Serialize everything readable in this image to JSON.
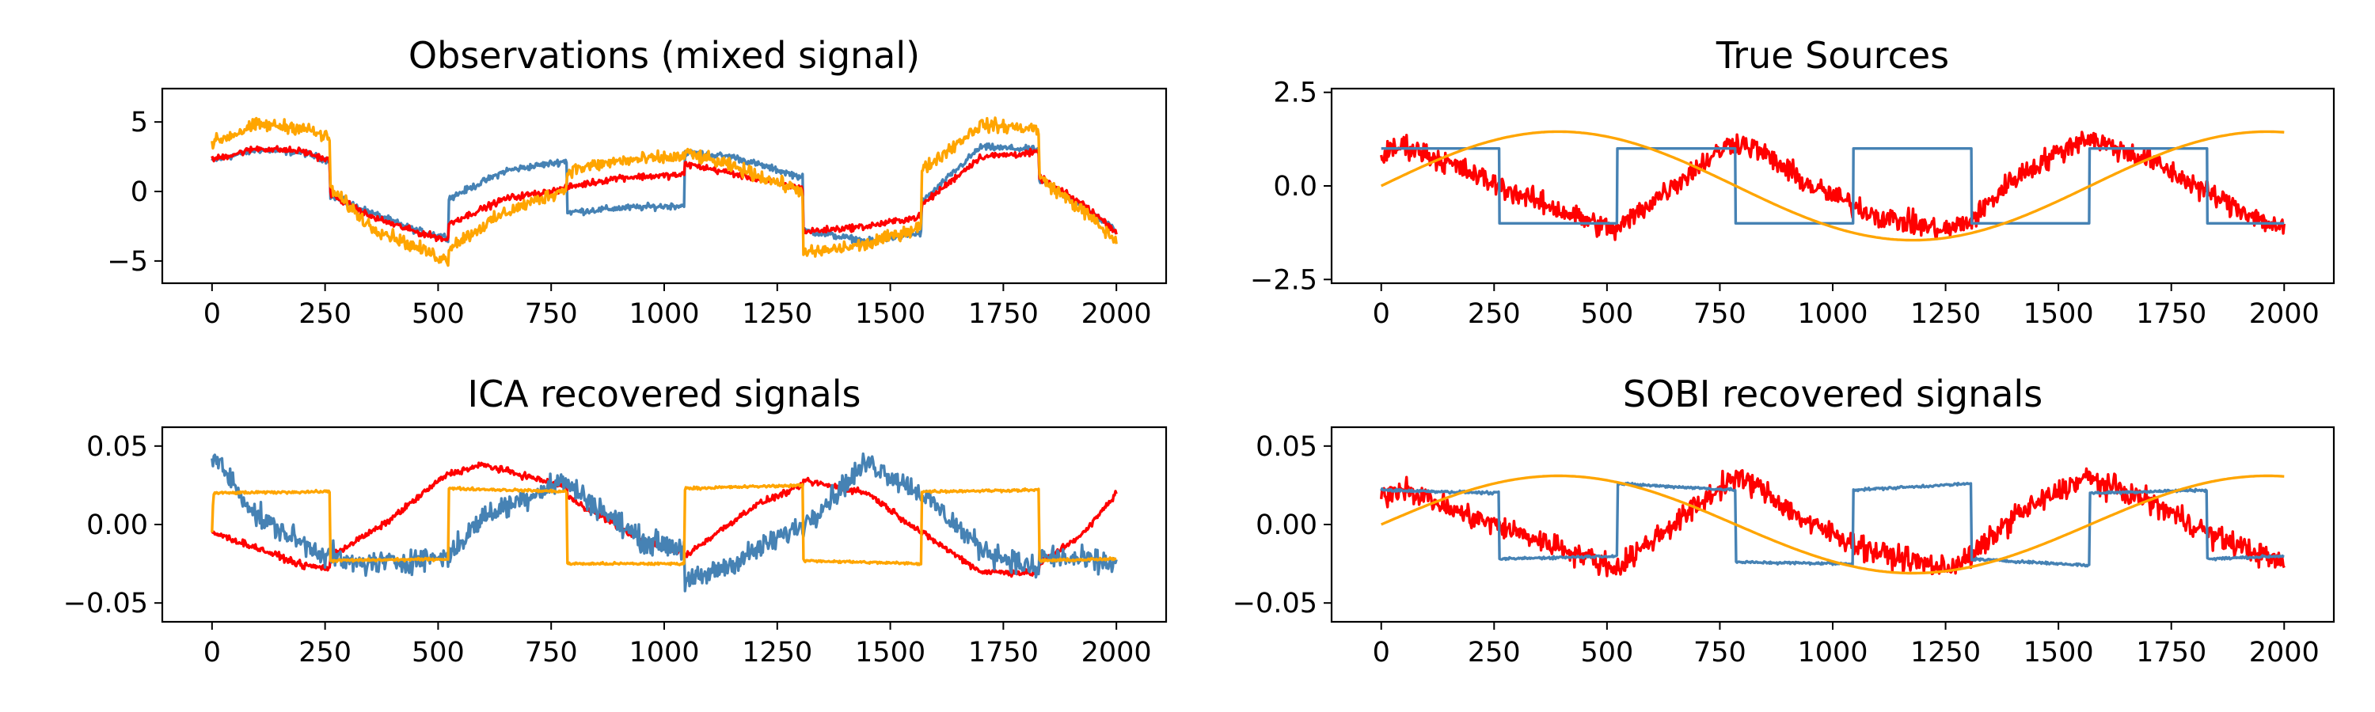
{
  "colors": {
    "red": "#ff0000",
    "blue": "#4682b4",
    "orange": "#ffa500"
  },
  "chart_data": [
    {
      "type": "line",
      "title": "Observations (mixed signal)",
      "xlim": [
        -110,
        2110
      ],
      "ylim": [
        -6.6,
        7.4
      ],
      "xticks": [
        0,
        250,
        500,
        750,
        1000,
        1250,
        1500,
        1750,
        2000
      ],
      "xtick_labels": [
        "0",
        "250",
        "500",
        "750",
        "1000",
        "1250",
        "1500",
        "1750",
        "2000"
      ],
      "yticks": [
        -5,
        0,
        5
      ],
      "ytick_labels": [
        "−5",
        "0",
        "5"
      ],
      "series": [
        {
          "color": "#4682b4",
          "noise": 0.35,
          "points": [
            [
              0,
              2.2
            ],
            [
              100,
              3.0
            ],
            [
              200,
              2.8
            ],
            [
              261,
              2.2
            ],
            [
              262,
              -0.3
            ],
            [
              350,
              -1.5
            ],
            [
              450,
              -2.8
            ],
            [
              523,
              -3.3
            ],
            [
              524,
              -0.5
            ],
            [
              650,
              1.5
            ],
            [
              784,
              2.2
            ],
            [
              785,
              -1.5
            ],
            [
              900,
              -1.2
            ],
            [
              1045,
              -1.0
            ],
            [
              1046,
              2.8
            ],
            [
              1150,
              2.5
            ],
            [
              1307,
              1.0
            ],
            [
              1308,
              -2.8
            ],
            [
              1450,
              -3.6
            ],
            [
              1568,
              -3.0
            ],
            [
              1569,
              -0.8
            ],
            [
              1700,
              3.2
            ],
            [
              1829,
              3.0
            ],
            [
              1830,
              0.8
            ],
            [
              1930,
              -1.2
            ],
            [
              2000,
              -2.8
            ]
          ]
        },
        {
          "color": "#ff0000",
          "noise": 0.35,
          "points": [
            [
              0,
              2.3
            ],
            [
              100,
              3.1
            ],
            [
              200,
              2.9
            ],
            [
              261,
              2.2
            ],
            [
              262,
              -0.2
            ],
            [
              350,
              -1.8
            ],
            [
              450,
              -2.9
            ],
            [
              523,
              -3.5
            ],
            [
              524,
              -2.3
            ],
            [
              650,
              -0.5
            ],
            [
              784,
              0.2
            ],
            [
              785,
              0.3
            ],
            [
              900,
              1.0
            ],
            [
              1045,
              1.2
            ],
            [
              1046,
              2.0
            ],
            [
              1150,
              1.3
            ],
            [
              1307,
              0.2
            ],
            [
              1308,
              -2.9
            ],
            [
              1450,
              -2.5
            ],
            [
              1568,
              -1.8
            ],
            [
              1569,
              -1.0
            ],
            [
              1700,
              2.5
            ],
            [
              1829,
              2.8
            ],
            [
              1830,
              1.0
            ],
            [
              1930,
              -1.0
            ],
            [
              2000,
              -2.9
            ]
          ]
        },
        {
          "color": "#ffa500",
          "noise": 0.7,
          "points": [
            [
              0,
              3.5
            ],
            [
              100,
              4.8
            ],
            [
              200,
              4.6
            ],
            [
              261,
              3.8
            ],
            [
              262,
              0.2
            ],
            [
              350,
              -2.5
            ],
            [
              450,
              -4.0
            ],
            [
              523,
              -5.0
            ],
            [
              524,
              -4.0
            ],
            [
              650,
              -1.5
            ],
            [
              784,
              0.2
            ],
            [
              785,
              1.5
            ],
            [
              900,
              2.2
            ],
            [
              1045,
              2.5
            ],
            [
              1046,
              2.8
            ],
            [
              1150,
              1.8
            ],
            [
              1307,
              0.0
            ],
            [
              1308,
              -4.5
            ],
            [
              1450,
              -3.8
            ],
            [
              1568,
              -2.5
            ],
            [
              1569,
              1.5
            ],
            [
              1700,
              4.8
            ],
            [
              1829,
              4.5
            ],
            [
              1830,
              1.0
            ],
            [
              1930,
              -1.5
            ],
            [
              2000,
              -3.6
            ]
          ]
        }
      ]
    },
    {
      "type": "line",
      "title": "True Sources",
      "xlim": [
        -110,
        2110
      ],
      "ylim": [
        -2.6,
        2.6
      ],
      "xticks": [
        0,
        250,
        500,
        750,
        1000,
        1250,
        1500,
        1750,
        2000
      ],
      "xtick_labels": [
        "0",
        "250",
        "500",
        "750",
        "1000",
        "1250",
        "1500",
        "1750",
        "2000"
      ],
      "yticks": [
        -2.5,
        0,
        2.5
      ],
      "ytick_labels": [
        "−2.5",
        "0.0",
        "2.5"
      ],
      "series": [
        {
          "color": "#ff0000",
          "noise": 0.45,
          "points": [
            [
              0,
              0.8
            ],
            [
              50,
              1.1
            ],
            [
              150,
              0.6
            ],
            [
              300,
              -0.2
            ],
            [
              450,
              -0.9
            ],
            [
              520,
              -1.2
            ],
            [
              600,
              -0.4
            ],
            [
              700,
              0.5
            ],
            [
              780,
              1.2
            ],
            [
              830,
              1.0
            ],
            [
              950,
              0.0
            ],
            [
              1100,
              -0.8
            ],
            [
              1250,
              -1.2
            ],
            [
              1310,
              -0.9
            ],
            [
              1400,
              0.2
            ],
            [
              1560,
              1.3
            ],
            [
              1700,
              0.7
            ],
            [
              1850,
              -0.3
            ],
            [
              2000,
              -1.2
            ]
          ]
        },
        {
          "color": "#4682b4",
          "noise": 0,
          "points": [
            [
              0,
              1
            ],
            [
              261,
              1
            ],
            [
              262,
              -1
            ],
            [
              522,
              -1
            ],
            [
              523,
              1
            ],
            [
              784,
              1
            ],
            [
              785,
              -1
            ],
            [
              1045,
              -1
            ],
            [
              1046,
              1
            ],
            [
              1307,
              1
            ],
            [
              1308,
              -1
            ],
            [
              1568,
              -1
            ],
            [
              1569,
              1
            ],
            [
              1829,
              1
            ],
            [
              1830,
              -1
            ],
            [
              2000,
              -1
            ]
          ]
        },
        {
          "color": "#ffa500",
          "noise": 0,
          "sine": {
            "amplitude": 1.45,
            "period": 1570,
            "offset": 0
          }
        }
      ]
    },
    {
      "type": "line",
      "title": "ICA recovered signals",
      "xlim": [
        -110,
        2110
      ],
      "ylim": [
        -0.062,
        0.062
      ],
      "xticks": [
        0,
        250,
        500,
        750,
        1000,
        1250,
        1500,
        1750,
        2000
      ],
      "xtick_labels": [
        "0",
        "250",
        "500",
        "750",
        "1000",
        "1250",
        "1500",
        "1750",
        "2000"
      ],
      "yticks": [
        -0.05,
        0,
        0.05
      ],
      "ytick_labels": [
        "−0.05",
        "0.00",
        "0.05"
      ],
      "series": [
        {
          "color": "#ff0000",
          "noise": 0.003,
          "points": [
            [
              0,
              -0.005
            ],
            [
              100,
              -0.015
            ],
            [
              200,
              -0.026
            ],
            [
              261,
              -0.028
            ],
            [
              262,
              -0.02
            ],
            [
              380,
              0.0
            ],
            [
              520,
              0.032
            ],
            [
              600,
              0.038
            ],
            [
              784,
              0.024
            ],
            [
              785,
              0.018
            ],
            [
              950,
              -0.01
            ],
            [
              1045,
              -0.018
            ],
            [
              1046,
              -0.02
            ],
            [
              1200,
              0.012
            ],
            [
              1307,
              0.025
            ],
            [
              1308,
              0.028
            ],
            [
              1450,
              0.02
            ],
            [
              1568,
              -0.005
            ],
            [
              1569,
              -0.005
            ],
            [
              1700,
              -0.03
            ],
            [
              1829,
              -0.031
            ],
            [
              1830,
              -0.025
            ],
            [
              1930,
              -0.005
            ],
            [
              2000,
              0.02
            ]
          ]
        },
        {
          "color": "#4682b4",
          "noise": 0.011,
          "points": [
            [
              0,
              0.045
            ],
            [
              100,
              0.005
            ],
            [
              200,
              -0.012
            ],
            [
              300,
              -0.025
            ],
            [
              400,
              -0.024
            ],
            [
              523,
              -0.02
            ],
            [
              600,
              0.005
            ],
            [
              750,
              0.025
            ],
            [
              784,
              0.028
            ],
            [
              785,
              0.026
            ],
            [
              950,
              -0.01
            ],
            [
              1045,
              -0.015
            ],
            [
              1046,
              -0.038
            ],
            [
              1150,
              -0.025
            ],
            [
              1307,
              0.0
            ],
            [
              1308,
              0.0
            ],
            [
              1450,
              0.04
            ],
            [
              1568,
              0.02
            ],
            [
              1569,
              0.02
            ],
            [
              1700,
              -0.015
            ],
            [
              1829,
              -0.03
            ],
            [
              1830,
              -0.02
            ],
            [
              2000,
              -0.025
            ]
          ]
        },
        {
          "color": "#ffa500",
          "noise": 0.0012,
          "points": [
            [
              0,
              -0.005
            ],
            [
              3,
              0.02
            ],
            [
              261,
              0.021
            ],
            [
              262,
              -0.023
            ],
            [
              522,
              -0.022
            ],
            [
              523,
              0.023
            ],
            [
              784,
              0.021
            ],
            [
              785,
              -0.025
            ],
            [
              1045,
              -0.025
            ],
            [
              1046,
              0.023
            ],
            [
              1307,
              0.025
            ],
            [
              1308,
              -0.023
            ],
            [
              1568,
              -0.025
            ],
            [
              1569,
              0.021
            ],
            [
              1829,
              0.022
            ],
            [
              1830,
              -0.023
            ],
            [
              2000,
              -0.022
            ]
          ]
        }
      ]
    },
    {
      "type": "line",
      "title": "SOBI recovered signals",
      "xlim": [
        -110,
        2110
      ],
      "ylim": [
        -0.062,
        0.062
      ],
      "xticks": [
        0,
        250,
        500,
        750,
        1000,
        1250,
        1500,
        1750,
        2000
      ],
      "xtick_labels": [
        "0",
        "250",
        "500",
        "750",
        "1000",
        "1250",
        "1500",
        "1750",
        "2000"
      ],
      "yticks": [
        -0.05,
        0,
        0.05
      ],
      "ytick_labels": [
        "−0.05",
        "0.00",
        "0.05"
      ],
      "series": [
        {
          "color": "#ff0000",
          "noise": 0.011,
          "points": [
            [
              0,
              0.018
            ],
            [
              50,
              0.024
            ],
            [
              150,
              0.01
            ],
            [
              300,
              -0.005
            ],
            [
              450,
              -0.02
            ],
            [
              520,
              -0.028
            ],
            [
              600,
              -0.01
            ],
            [
              700,
              0.012
            ],
            [
              780,
              0.03
            ],
            [
              830,
              0.025
            ],
            [
              950,
              0.0
            ],
            [
              1100,
              -0.018
            ],
            [
              1250,
              -0.028
            ],
            [
              1310,
              -0.02
            ],
            [
              1400,
              0.005
            ],
            [
              1560,
              0.03
            ],
            [
              1700,
              0.015
            ],
            [
              1850,
              -0.008
            ],
            [
              2000,
              -0.025
            ]
          ]
        },
        {
          "color": "#4682b4",
          "noise": 0.0012,
          "points": [
            [
              0,
              0.022
            ],
            [
              261,
              0.02
            ],
            [
              262,
              -0.022
            ],
            [
              522,
              -0.02
            ],
            [
              523,
              0.026
            ],
            [
              784,
              0.022
            ],
            [
              785,
              -0.024
            ],
            [
              1045,
              -0.025
            ],
            [
              1046,
              0.022
            ],
            [
              1307,
              0.026
            ],
            [
              1308,
              -0.022
            ],
            [
              1568,
              -0.026
            ],
            [
              1569,
              0.02
            ],
            [
              1829,
              0.022
            ],
            [
              1830,
              -0.022
            ],
            [
              2000,
              -0.02
            ]
          ]
        },
        {
          "color": "#ffa500",
          "noise": 0,
          "sine": {
            "amplitude": 0.031,
            "period": 1570,
            "offset": 0
          }
        }
      ]
    }
  ]
}
